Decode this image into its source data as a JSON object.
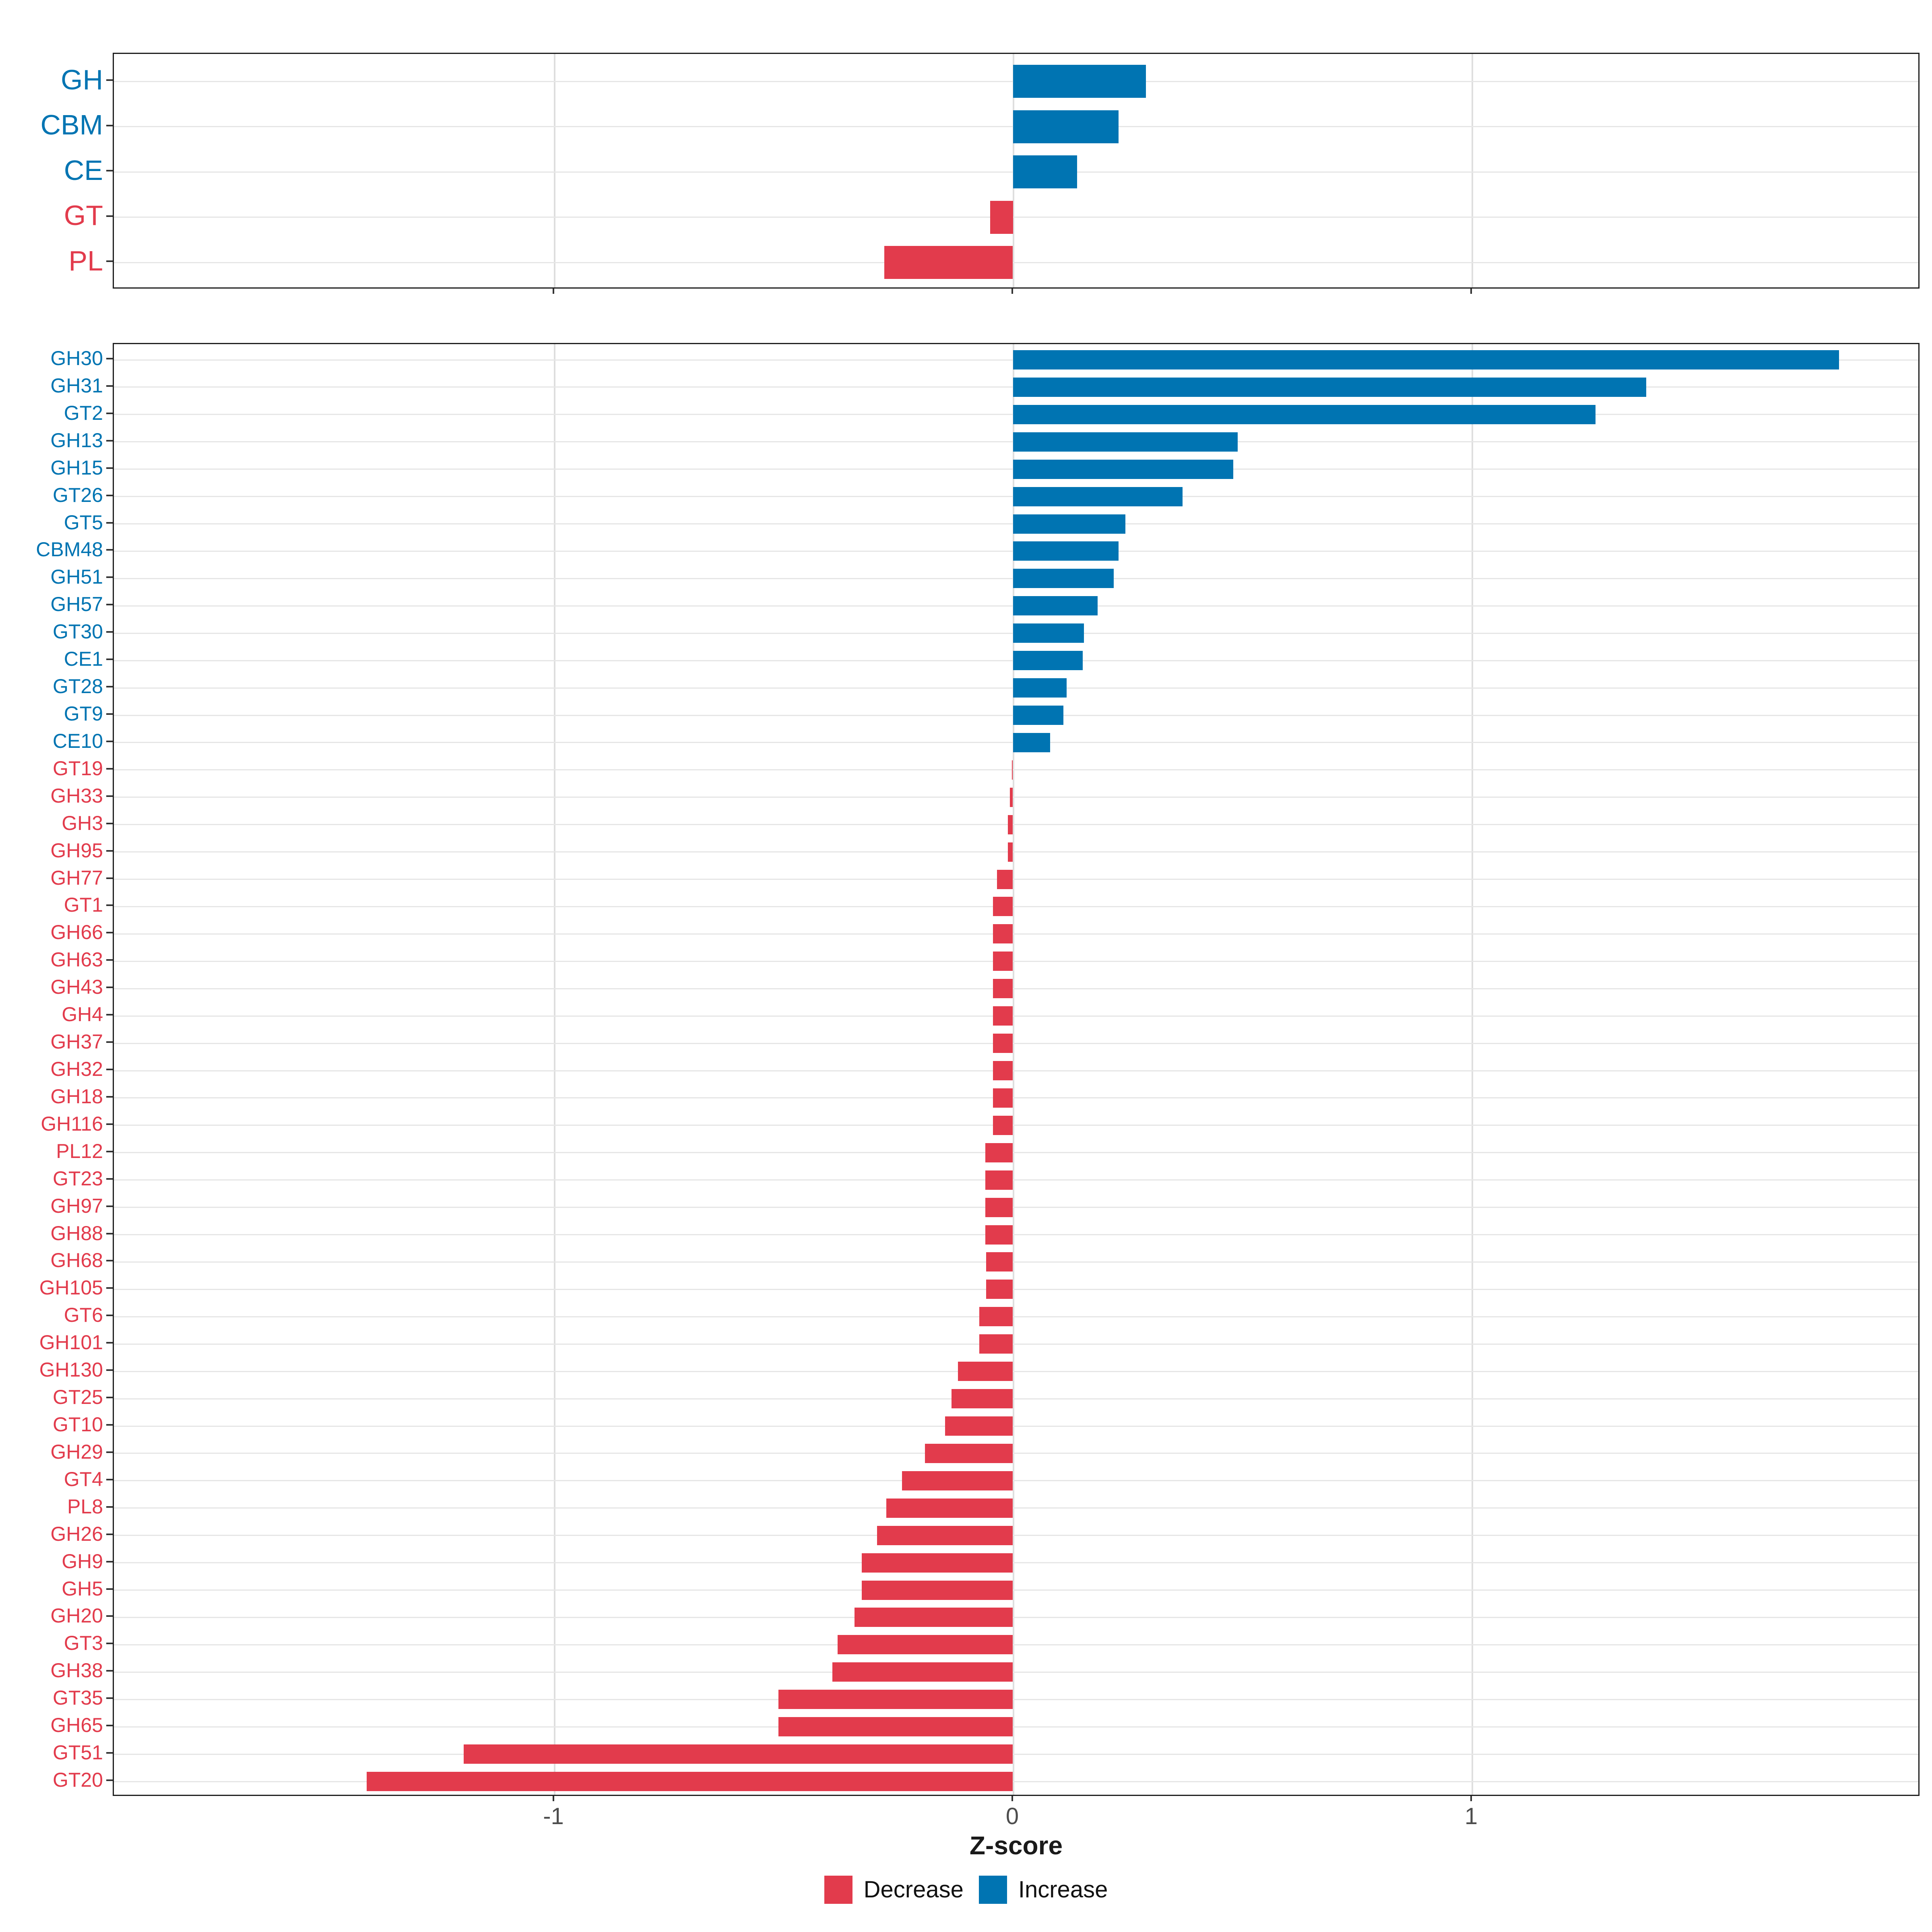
{
  "colors": {
    "increase": "#0074B2",
    "decrease": "#E23B4C",
    "axis_text": "#4D4D4D",
    "grid": "#E6E6E6",
    "panel_border": "#1F1F1F",
    "background": "#FFFFFF"
  },
  "axis": {
    "label": "Z-score",
    "ticks": [
      -1,
      0,
      1
    ],
    "tick_labels": [
      "-1",
      "0",
      "1"
    ]
  },
  "legend": {
    "items": [
      {
        "label": "Decrease",
        "color_key": "decrease"
      },
      {
        "label": "Increase",
        "color_key": "increase"
      }
    ]
  },
  "chart_data": [
    {
      "id": "families",
      "type": "bar",
      "orientation": "horizontal",
      "title": "",
      "xlabel": "Z-score",
      "xlim": [
        -1.96,
        1.98
      ],
      "xticks": [
        -1,
        0,
        1
      ],
      "grid": true,
      "legend_position": "bottom",
      "categories": [
        "GH",
        "CBM",
        "CE",
        "GT",
        "PL"
      ],
      "values": [
        0.29,
        0.23,
        0.14,
        -0.05,
        -0.28
      ]
    },
    {
      "id": "cazyme_families",
      "type": "bar",
      "orientation": "horizontal",
      "title": "",
      "xlabel": "Z-score",
      "xlim": [
        -1.96,
        1.98
      ],
      "xticks": [
        -1,
        0,
        1
      ],
      "grid": true,
      "legend_position": "bottom",
      "categories": [
        "GH30",
        "GH31",
        "GT2",
        "GH13",
        "GH15",
        "GT26",
        "GT5",
        "CBM48",
        "GH51",
        "GH57",
        "GT30",
        "CE1",
        "GT28",
        "GT9",
        "CE10",
        "GT19",
        "GH33",
        "GH3",
        "GH95",
        "GH77",
        "GT1",
        "GH66",
        "GH63",
        "GH43",
        "GH4",
        "GH37",
        "GH32",
        "GH18",
        "GH116",
        "PL12",
        "GT23",
        "GH97",
        "GH88",
        "GH68",
        "GH105",
        "GT6",
        "GH101",
        "GH130",
        "GT25",
        "GT10",
        "GH29",
        "GT4",
        "PL8",
        "GH26",
        "GH9",
        "GH5",
        "GH20",
        "GT3",
        "GH38",
        "GT35",
        "GH65",
        "GT51",
        "GT20"
      ],
      "values": [
        1.8,
        1.38,
        1.27,
        0.49,
        0.48,
        0.37,
        0.245,
        0.23,
        0.22,
        0.185,
        0.155,
        0.152,
        0.117,
        0.11,
        0.081,
        -0.002,
        -0.007,
        -0.011,
        -0.011,
        -0.035,
        -0.043,
        -0.043,
        -0.043,
        -0.043,
        -0.043,
        -0.043,
        -0.043,
        -0.043,
        -0.043,
        -0.06,
        -0.06,
        -0.06,
        -0.06,
        -0.058,
        -0.058,
        -0.073,
        -0.073,
        -0.12,
        -0.134,
        -0.148,
        -0.192,
        -0.242,
        -0.276,
        -0.296,
        -0.329,
        -0.329,
        -0.345,
        -0.382,
        -0.393,
        -0.511,
        -0.511,
        -1.197,
        -1.408
      ]
    }
  ]
}
